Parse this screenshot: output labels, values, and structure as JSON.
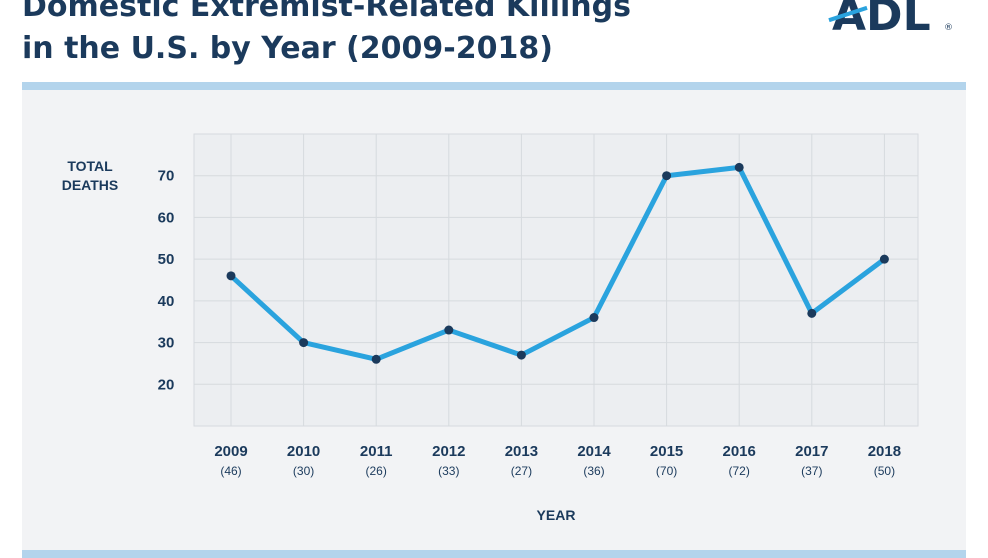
{
  "header": {
    "title_line1": "Domestic Extremist-Related Killings",
    "title_line2": "in the U.S. by Year (2009-2018)",
    "logo_text": "ADL",
    "logo_mark": "®"
  },
  "colors": {
    "navy": "#1b3a5c",
    "accent": "#2aa3de",
    "bar": "#b3d4ec",
    "grid": "#d6dade"
  },
  "chart_data": {
    "type": "line",
    "title": "Domestic Extremist-Related Killings in the U.S. by Year (2009-2018)",
    "xlabel": "YEAR",
    "ylabel_line1": "TOTAL",
    "ylabel_line2": "DEATHS",
    "ylim": [
      10,
      80
    ],
    "yticks": [
      20,
      30,
      40,
      50,
      60,
      70
    ],
    "grid": true,
    "categories": [
      "2009",
      "2010",
      "2011",
      "2012",
      "2013",
      "2014",
      "2015",
      "2016",
      "2017",
      "2018"
    ],
    "sublabels": [
      "(46)",
      "(30)",
      "(26)",
      "(33)",
      "(27)",
      "(36)",
      "(70)",
      "(72)",
      "(37)",
      "(50)"
    ],
    "series": [
      {
        "name": "Total Deaths",
        "values": [
          46,
          30,
          26,
          33,
          27,
          36,
          70,
          72,
          37,
          50
        ]
      }
    ]
  }
}
